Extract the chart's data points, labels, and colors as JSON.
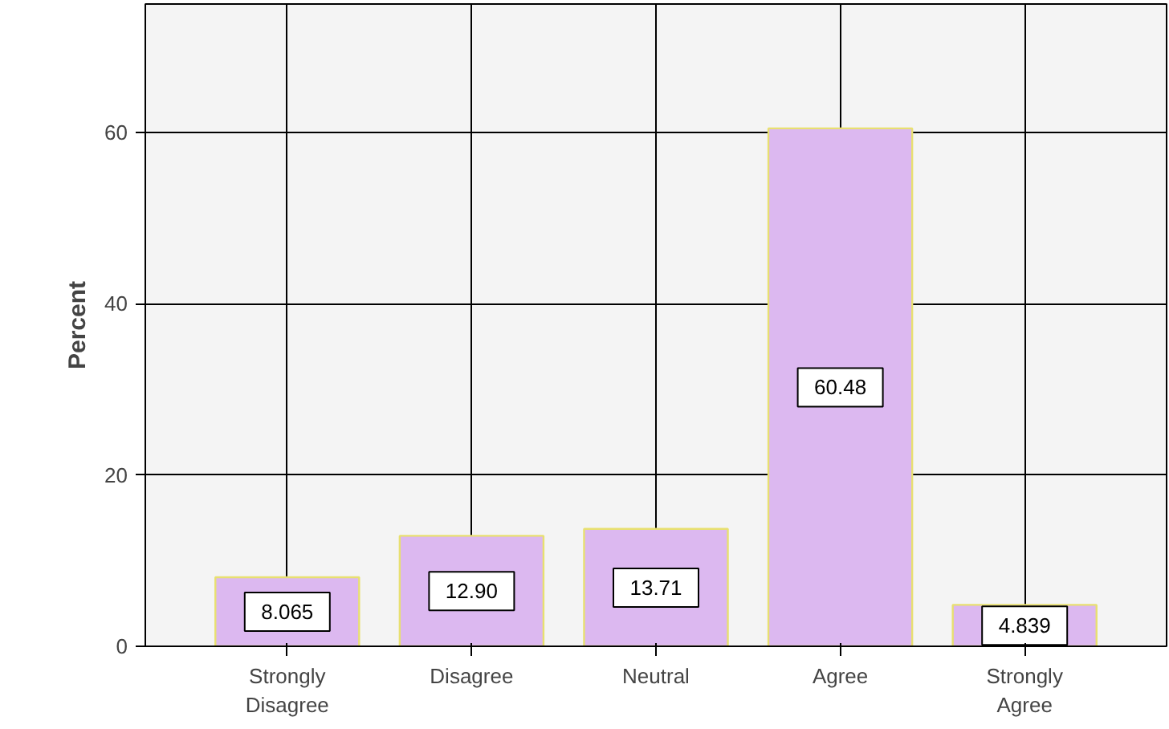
{
  "chart_data": {
    "type": "bar",
    "ylabel": "Percent",
    "categories": [
      "Strongly Disagree",
      "Disagree",
      "Neutral",
      "Agree",
      "Strongly Agree"
    ],
    "values": [
      8.065,
      12.9,
      13.71,
      60.48,
      4.839
    ],
    "value_labels": [
      "8.065",
      "12.90",
      "13.71",
      "60.48",
      "4.839"
    ],
    "color": "#dcb8f0",
    "ylim": [
      0,
      75
    ],
    "yticks": [
      0,
      20,
      40,
      60
    ],
    "grid": true
  }
}
